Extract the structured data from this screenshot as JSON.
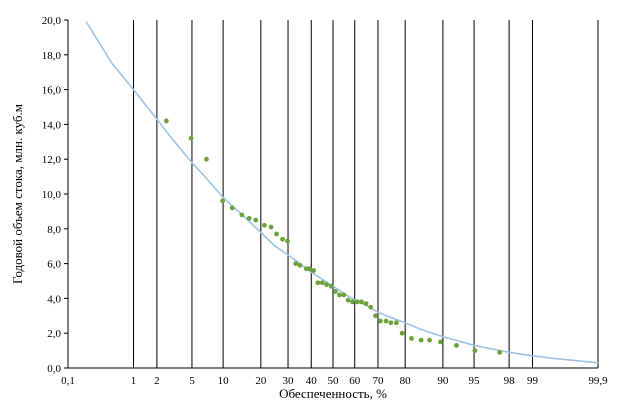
{
  "chart_data": {
    "type": "scatter",
    "title": "",
    "xlabel": "Обеспеченность, %",
    "ylabel": "Годовой объем стока, млн. куб.м",
    "x_scale": "probability",
    "xlim": [
      0.1,
      99.9
    ],
    "ylim": [
      0,
      20
    ],
    "x_ticks": [
      {
        "value": 0.1,
        "label": "0,1"
      },
      {
        "value": 1,
        "label": "1"
      },
      {
        "value": 2,
        "label": "2"
      },
      {
        "value": 5,
        "label": "5"
      },
      {
        "value": 10,
        "label": "10"
      },
      {
        "value": 20,
        "label": "20"
      },
      {
        "value": 30,
        "label": "30"
      },
      {
        "value": 40,
        "label": "40"
      },
      {
        "value": 50,
        "label": "50"
      },
      {
        "value": 60,
        "label": "60"
      },
      {
        "value": 70,
        "label": "70"
      },
      {
        "value": 80,
        "label": "80"
      },
      {
        "value": 90,
        "label": "90"
      },
      {
        "value": 95,
        "label": "95"
      },
      {
        "value": 98,
        "label": "98"
      },
      {
        "value": 99,
        "label": "99"
      },
      {
        "value": 99.9,
        "label": "99,9"
      }
    ],
    "y_ticks": [
      {
        "value": 0,
        "label": "0,0"
      },
      {
        "value": 2,
        "label": "2,0"
      },
      {
        "value": 4,
        "label": "4,0"
      },
      {
        "value": 6,
        "label": "6,0"
      },
      {
        "value": 8,
        "label": "8,0"
      },
      {
        "value": 10,
        "label": "10,0"
      },
      {
        "value": 12,
        "label": "12,0"
      },
      {
        "value": 14,
        "label": "14,0"
      },
      {
        "value": 16,
        "label": "16,0"
      },
      {
        "value": 18,
        "label": "18,0"
      },
      {
        "value": 20,
        "label": "20,0"
      }
    ],
    "grid": {
      "vertical": true,
      "horizontal": false
    },
    "colors": {
      "points": "#6ea13a",
      "curve": "#9dc3e6",
      "grid": "#000000"
    },
    "points": {
      "x": [
        2.6,
        4.9,
        7.0,
        9.9,
        12.0,
        14.4,
        16.4,
        18.4,
        21.2,
        23.5,
        25.5,
        27.8,
        29.8,
        33.2,
        35.0,
        37.8,
        39.2,
        41.1,
        43.0,
        45.0,
        47.0,
        49.1,
        51.1,
        53.0,
        55.0,
        57.0,
        59.0,
        61.1,
        63.0,
        65.0,
        67.0,
        69.0,
        71.0,
        73.2,
        75.0,
        77.0,
        79.0,
        82.0,
        84.8,
        87.0,
        89.5,
        92.5,
        95.1,
        97.4
      ],
      "y": [
        14.2,
        13.2,
        12.0,
        9.6,
        9.2,
        8.8,
        8.6,
        8.5,
        8.2,
        8.1,
        7.7,
        7.4,
        7.3,
        6.0,
        5.9,
        5.7,
        5.7,
        5.6,
        4.9,
        4.9,
        4.8,
        4.7,
        4.4,
        4.2,
        4.2,
        3.9,
        3.8,
        3.8,
        3.8,
        3.7,
        3.5,
        3.0,
        2.7,
        2.7,
        2.6,
        2.6,
        2.0,
        1.7,
        1.6,
        1.6,
        1.5,
        1.3,
        1.0,
        0.9
      ]
    },
    "curve": {
      "x": [
        0.2,
        0.5,
        1,
        2,
        3,
        5,
        7,
        10,
        15,
        20,
        25,
        30,
        35,
        40,
        45,
        50,
        55,
        60,
        65,
        70,
        75,
        80,
        85,
        90,
        95,
        98,
        99,
        99.5,
        99.9
      ],
      "y": [
        19.9,
        17.5,
        16.0,
        14.3,
        13.2,
        11.8,
        10.9,
        9.8,
        8.7,
        7.8,
        7.0,
        6.5,
        6.0,
        5.5,
        5.1,
        4.7,
        4.3,
        3.9,
        3.6,
        3.2,
        2.9,
        2.6,
        2.2,
        1.8,
        1.3,
        0.9,
        0.7,
        0.55,
        0.3
      ]
    }
  }
}
